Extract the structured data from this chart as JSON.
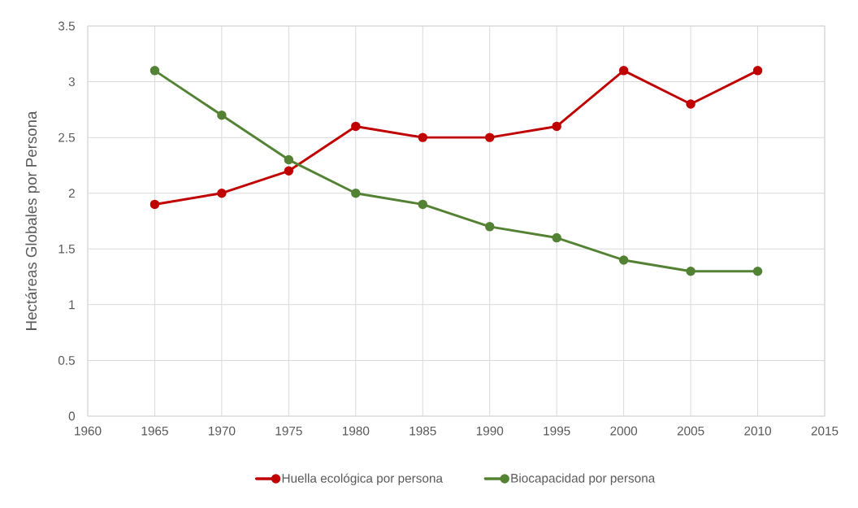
{
  "chart_data": {
    "type": "line",
    "x": [
      1965,
      1970,
      1975,
      1980,
      1985,
      1990,
      1995,
      2000,
      2005,
      2010
    ],
    "series": [
      {
        "name": "Huella ecológica por persona",
        "color": "#c00000",
        "values": [
          1.9,
          2.0,
          2.2,
          2.6,
          2.5,
          2.5,
          2.6,
          3.1,
          2.8,
          3.1
        ]
      },
      {
        "name": "Biocapacidad por persona",
        "color": "#548235",
        "values": [
          3.1,
          2.7,
          2.3,
          2.0,
          1.9,
          1.7,
          1.6,
          1.4,
          1.3,
          1.3
        ]
      }
    ],
    "ylabel": "Hectáreas Globales por Persona",
    "xlim": [
      1960,
      2015
    ],
    "xticks": [
      1960,
      1965,
      1970,
      1975,
      1980,
      1985,
      1990,
      1995,
      2000,
      2005,
      2010,
      2015
    ],
    "ylim": [
      0,
      3.5
    ],
    "yticks": [
      0,
      0.5,
      1,
      1.5,
      2,
      2.5,
      3,
      3.5
    ],
    "grid": true,
    "legend": "bottom",
    "marker": "circle",
    "line_style": "solid"
  }
}
